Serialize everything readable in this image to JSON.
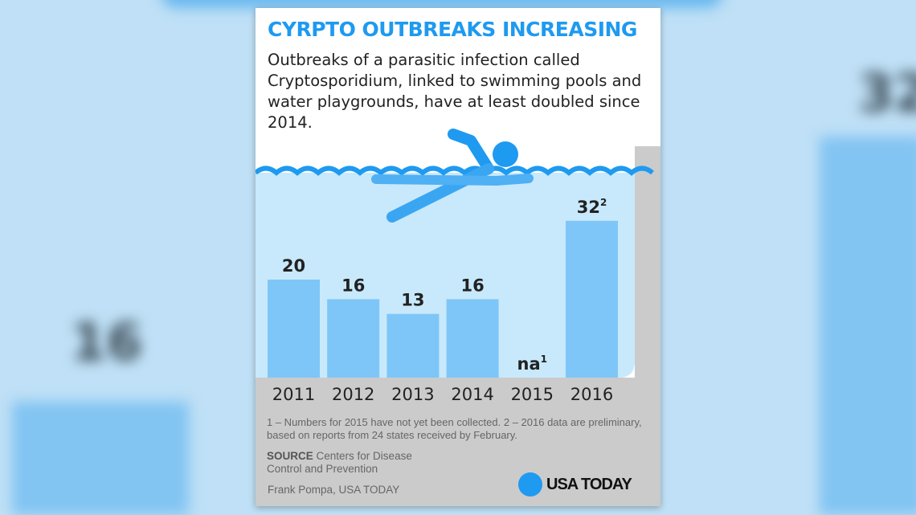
{
  "header": {
    "title": "CYRPTO OUTBREAKS INCREASING",
    "subtitle": "Outbreaks of a parasitic infection called Cryptosporidium, linked to swimming pools and water playgrounds, have at least doubled since 2014."
  },
  "chart_data": {
    "type": "bar",
    "categories": [
      "2011",
      "2012",
      "2013",
      "2014",
      "2015",
      "2016"
    ],
    "values": [
      20,
      16,
      13,
      16,
      null,
      32
    ],
    "data_labels": [
      "20",
      "16",
      "13",
      "16",
      "na",
      "32"
    ],
    "label_footnotes": [
      "",
      "",
      "",
      "",
      "1",
      "2"
    ],
    "ylim": [
      0,
      34
    ],
    "grid": false,
    "colors": {
      "bar": "#7ec6f7",
      "water": "#c8e9fc",
      "accent": "#1e9af0",
      "floor": "#cbcbcb"
    }
  },
  "footnotes": "1 – Numbers for 2015 have not yet been collected.  2 – 2016 data are preliminary, based on reports from 24 states received by February.",
  "source": {
    "label": "SOURCE",
    "text": "Centers for Disease Control and Prevention"
  },
  "credit": "Frank Pompa, USA TODAY",
  "logo": "USA TODAY",
  "background": {
    "left_label": "16",
    "right_label": "32"
  }
}
